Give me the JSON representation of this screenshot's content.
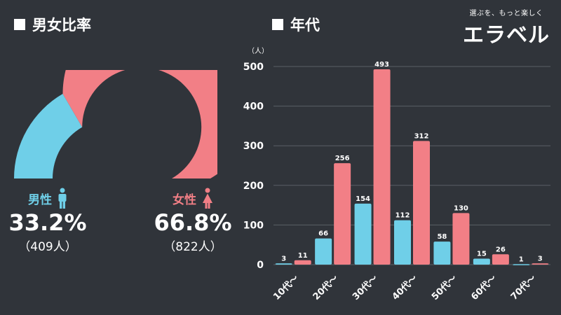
{
  "left_title": "男女比率",
  "right_title": "年代",
  "brand": {
    "tagline": "選ぶを、もっと楽しく",
    "logo": "エラベル"
  },
  "colors": {
    "male": "#6fcfe8",
    "female": "#f27f86",
    "background": "#30343a",
    "grid": "#5a5f66"
  },
  "gender": {
    "male": {
      "label": "男性",
      "percent": "33.2%",
      "count": "（409人）",
      "icon": "male-person-icon"
    },
    "female": {
      "label": "女性",
      "percent": "66.8%",
      "count": "（822人）",
      "icon": "female-person-icon"
    }
  },
  "chart_data": [
    {
      "type": "pie",
      "title": "男女比率",
      "categories": [
        "男性",
        "女性"
      ],
      "values": [
        33.2,
        66.8
      ],
      "counts": [
        409,
        822
      ],
      "style": "half-donut gauge"
    },
    {
      "type": "bar",
      "title": "年代",
      "ylabel": "（人）",
      "ylim": [
        0,
        500
      ],
      "yticks": [
        0,
        100,
        200,
        300,
        400,
        500
      ],
      "grid": true,
      "categories": [
        "10代〜",
        "20代〜",
        "30代〜",
        "40代〜",
        "50代〜",
        "60代〜",
        "70代〜"
      ],
      "series": [
        {
          "values": [
            3,
            66,
            154,
            112,
            58,
            15,
            1
          ]
        },
        {
          "values": [
            11,
            256,
            493,
            312,
            130,
            26,
            3
          ]
        }
      ]
    }
  ]
}
